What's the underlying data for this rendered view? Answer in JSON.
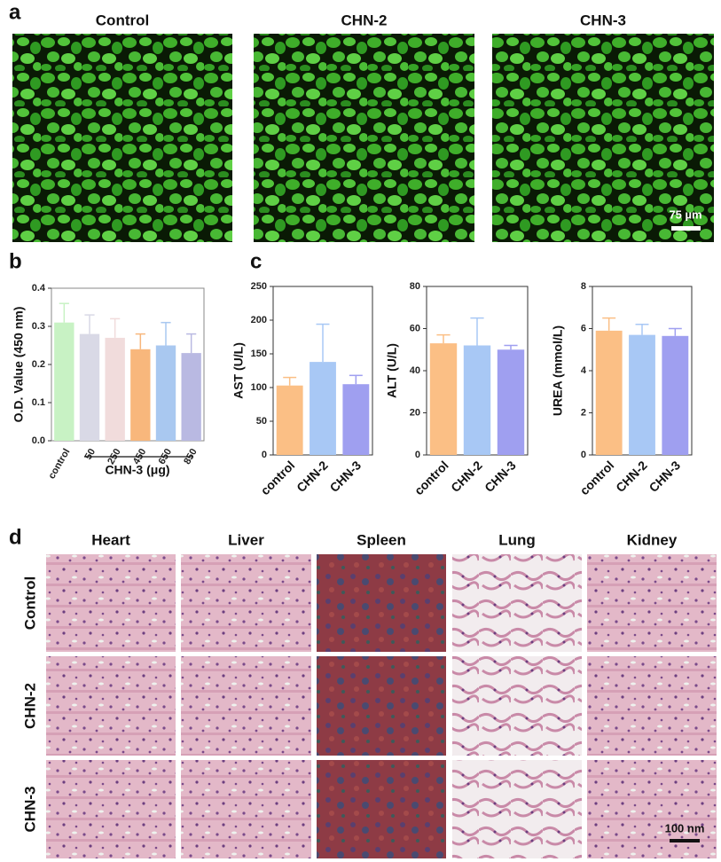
{
  "panel_labels": [
    "a",
    "b",
    "c",
    "d"
  ],
  "panel_a": {
    "columns": [
      "Control",
      "CHN-2",
      "CHN-3"
    ],
    "scale_bar": "75 µm"
  },
  "chart_data": [
    {
      "type": "bar",
      "ylabel": "O.D. Value (450 nm)",
      "xlabel": "CHN-3 (μg)",
      "categories": [
        "control",
        "50",
        "250",
        "450",
        "650",
        "850"
      ],
      "values": [
        0.31,
        0.28,
        0.27,
        0.24,
        0.25,
        0.23
      ],
      "errors": [
        0.05,
        0.05,
        0.05,
        0.04,
        0.06,
        0.05
      ],
      "colors": [
        "#c8f2c4",
        "#d9d9e6",
        "#f1dcdc",
        "#f8b77c",
        "#a9c8f0",
        "#b9b9e2"
      ],
      "ylim": [
        0,
        0.4
      ],
      "yticks": [
        {
          "value": 0,
          "label": "0.0"
        },
        {
          "value": 0.1,
          "label": "0.1"
        },
        {
          "value": 0.2,
          "label": "0.2"
        },
        {
          "value": 0.3,
          "label": "0.3"
        },
        {
          "value": 0.4,
          "label": "0.4"
        }
      ]
    },
    {
      "type": "bar",
      "ylabel": "AST (U/L)",
      "categories": [
        "control",
        "CHN-2",
        "CHN-3"
      ],
      "values": [
        103,
        138,
        105
      ],
      "errors": [
        12,
        56,
        13
      ],
      "colors": [
        "#fbbf85",
        "#a8c8f5",
        "#9f9ff0"
      ],
      "ylim": [
        0,
        250
      ],
      "yticks": [
        0,
        50,
        100,
        150,
        200,
        250
      ]
    },
    {
      "type": "bar",
      "ylabel": "ALT (U/L)",
      "categories": [
        "control",
        "CHN-2",
        "CHN-3"
      ],
      "values": [
        53,
        52,
        50
      ],
      "errors": [
        4,
        13,
        2
      ],
      "colors": [
        "#fbbf85",
        "#a8c8f5",
        "#9f9ff0"
      ],
      "ylim": [
        0,
        80
      ],
      "yticks": [
        0,
        20,
        40,
        60,
        80
      ]
    },
    {
      "type": "bar",
      "ylabel": "UREA (mmol/L)",
      "categories": [
        "control",
        "CHN-2",
        "CHN-3"
      ],
      "values": [
        5.9,
        5.7,
        5.65
      ],
      "errors": [
        0.6,
        0.5,
        0.35
      ],
      "colors": [
        "#fbbf85",
        "#a8c8f5",
        "#9f9ff0"
      ],
      "ylim": [
        0,
        8
      ],
      "yticks": [
        0,
        2,
        4,
        6,
        8
      ]
    }
  ],
  "panel_d": {
    "columns": [
      "Heart",
      "Liver",
      "Spleen",
      "Lung",
      "Kidney"
    ],
    "rows": [
      "Control",
      "CHN-2",
      "CHN-3"
    ],
    "scale_bar": "100 nm"
  }
}
